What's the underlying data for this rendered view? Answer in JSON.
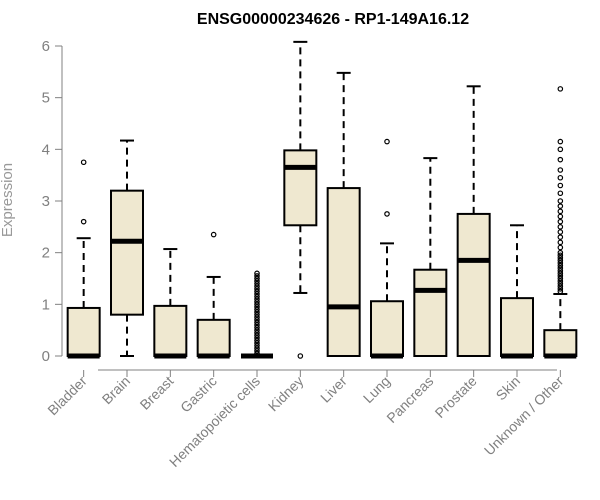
{
  "chart_data": {
    "type": "box",
    "title": "ENSG00000234626 - RP1-149A16.12",
    "xlabel": "",
    "ylabel": "Expression",
    "ylim": [
      0,
      6.2
    ],
    "yticks": [
      0,
      1,
      2,
      3,
      4,
      5,
      6
    ],
    "grid": false,
    "legend": "none",
    "box_color": "#EFE8D0",
    "outline_color": "#000000",
    "categories": [
      "Bladder",
      "Brain",
      "Breast",
      "Gastric",
      "Hematopoietic cells",
      "Kidney",
      "Liver",
      "Lung",
      "Pancreas",
      "Prostate",
      "Skin",
      "Unknown / Other"
    ],
    "boxes": [
      {
        "category": "Bladder",
        "lower_whisker": 0,
        "q1": 0,
        "median": 0,
        "q3": 0.93,
        "upper_whisker": 2.28,
        "outliers": [
          2.6,
          3.75
        ]
      },
      {
        "category": "Brain",
        "lower_whisker": 0,
        "q1": 0.8,
        "median": 2.22,
        "q3": 3.2,
        "upper_whisker": 4.17,
        "outliers": []
      },
      {
        "category": "Breast",
        "lower_whisker": 0,
        "q1": 0,
        "median": 0,
        "q3": 0.97,
        "upper_whisker": 2.07,
        "outliers": []
      },
      {
        "category": "Gastric",
        "lower_whisker": 0,
        "q1": 0,
        "median": 0,
        "q3": 0.7,
        "upper_whisker": 1.53,
        "outliers": [
          2.35
        ]
      },
      {
        "category": "Hematopoietic cells",
        "lower_whisker": 0,
        "q1": 0,
        "median": 0,
        "q3": 0,
        "upper_whisker": 0,
        "outliers": [
          0.05,
          0.1,
          0.15,
          0.2,
          0.25,
          0.3,
          0.35,
          0.4,
          0.45,
          0.5,
          0.55,
          0.6,
          0.65,
          0.7,
          0.75,
          0.8,
          0.85,
          0.9,
          0.95,
          1.0,
          1.05,
          1.1,
          1.15,
          1.2,
          1.25,
          1.3,
          1.35,
          1.4,
          1.45,
          1.5,
          1.55,
          1.6
        ]
      },
      {
        "category": "Kidney",
        "lower_whisker": 1.22,
        "q1": 2.53,
        "median": 3.65,
        "q3": 3.98,
        "upper_whisker": 6.08,
        "outliers": [
          0
        ]
      },
      {
        "category": "Liver",
        "lower_whisker": 0,
        "q1": 0,
        "median": 0.95,
        "q3": 3.25,
        "upper_whisker": 5.48,
        "outliers": []
      },
      {
        "category": "Lung",
        "lower_whisker": 0,
        "q1": 0,
        "median": 0,
        "q3": 1.06,
        "upper_whisker": 2.18,
        "outliers": [
          2.75,
          4.15
        ]
      },
      {
        "category": "Pancreas",
        "lower_whisker": 0,
        "q1": 0,
        "median": 1.27,
        "q3": 1.67,
        "upper_whisker": 3.83,
        "outliers": []
      },
      {
        "category": "Prostate",
        "lower_whisker": 0,
        "q1": 0,
        "median": 1.85,
        "q3": 2.75,
        "upper_whisker": 5.22,
        "outliers": []
      },
      {
        "category": "Skin",
        "lower_whisker": 0,
        "q1": 0,
        "median": 0,
        "q3": 1.12,
        "upper_whisker": 2.53,
        "outliers": []
      },
      {
        "category": "Unknown / Other",
        "lower_whisker": 0,
        "q1": 0,
        "median": 0,
        "q3": 0.5,
        "upper_whisker": 1.2,
        "outliers": [
          1.25,
          1.3,
          1.35,
          1.4,
          1.45,
          1.5,
          1.55,
          1.6,
          1.65,
          1.7,
          1.75,
          1.8,
          1.85,
          1.9,
          1.95,
          2.0,
          2.1,
          2.2,
          2.3,
          2.4,
          2.5,
          2.6,
          2.7,
          2.8,
          2.9,
          3.0,
          3.15,
          3.3,
          3.45,
          3.6,
          3.8,
          4.0,
          4.15,
          5.17
        ]
      }
    ]
  }
}
